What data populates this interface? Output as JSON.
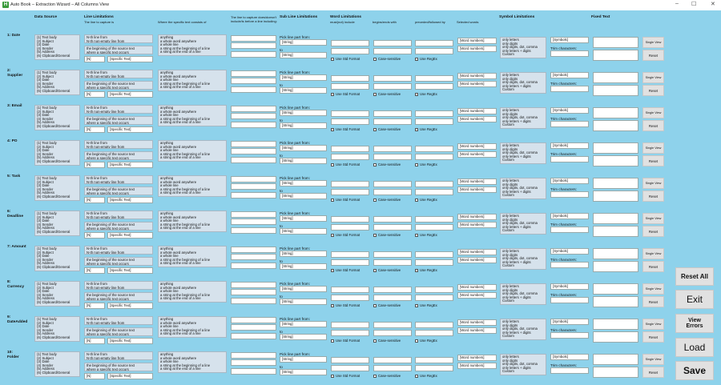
{
  "window": {
    "title": "Auto Book – Extraction Wizard – All Columns View",
    "app_icon_letter": "H",
    "minimize": "–",
    "maximize": "☐",
    "close": "✕"
  },
  "headers": {
    "data_source": "Data Source",
    "line_limitations": "Line Limitations",
    "line_to_capture": "The line to capture is",
    "specific_text_consists": "Where the specific text consists of",
    "include": "The line to capture does/doesn't include/is before a line including:",
    "sub_line": "Sub Line Limitations",
    "word_limitations": "Word Limitations",
    "must_include": "must(not) include",
    "begins_ends": "begins/ends with",
    "preceded_followed": "preceded/followed by",
    "selected_words": "Selected words",
    "symbol_limitations": "Symbol Limitations",
    "fixed_text": "Fixed Text"
  },
  "row_template": {
    "data_source_options": [
      "(1) Text body",
      "(2) Subject",
      "(3) Date",
      "(4) Sender",
      "(5) Address",
      "(6) Clipboard/General"
    ],
    "line_options_a": [
      "N-th line from",
      "N-th non-empty line from"
    ],
    "line_options_b": [
      "the beginning of the source text",
      "where a specific text occurs"
    ],
    "n_placeholder": "[N]",
    "specific_text_placeholder": "[Specific Text]",
    "specific_options": [
      "anything",
      "a whole word anywhere",
      "a whole line",
      "a string at the beginning of a line",
      "a string at the end of a line"
    ],
    "pick_from": "Pick line part from:",
    "string_placeholder": "[String]",
    "to": "to",
    "use_std_format": "Use Std Format",
    "case_sensitive": "Case-sensitive",
    "use_regex": "Use RegEx",
    "word_numbers": "[Word numbers]",
    "symbol_options": [
      "only letters",
      "only digits",
      "only digits, dot, comma",
      "only letters + digits",
      "Custom"
    ],
    "symbols_placeholder": "[Symbols]",
    "trim_characters": "Trim characters:",
    "single_view": "Single View",
    "reset": "Reset"
  },
  "rows": [
    {
      "label": "1: Date"
    },
    {
      "label": "2:\nSupplier"
    },
    {
      "label": "3: Email"
    },
    {
      "label": "4: PO"
    },
    {
      "label": "5: Task"
    },
    {
      "label": "6:\nDeadline"
    },
    {
      "label": "7: Amount"
    },
    {
      "label": "8:\nCurrency"
    },
    {
      "label": "9:\nDateAdded"
    },
    {
      "label": "10:\nFolder"
    }
  ],
  "actions": {
    "reset_all": "Reset All",
    "exit": "Exit",
    "view_errors": "View Errors",
    "load": "Load",
    "save": "Save"
  }
}
